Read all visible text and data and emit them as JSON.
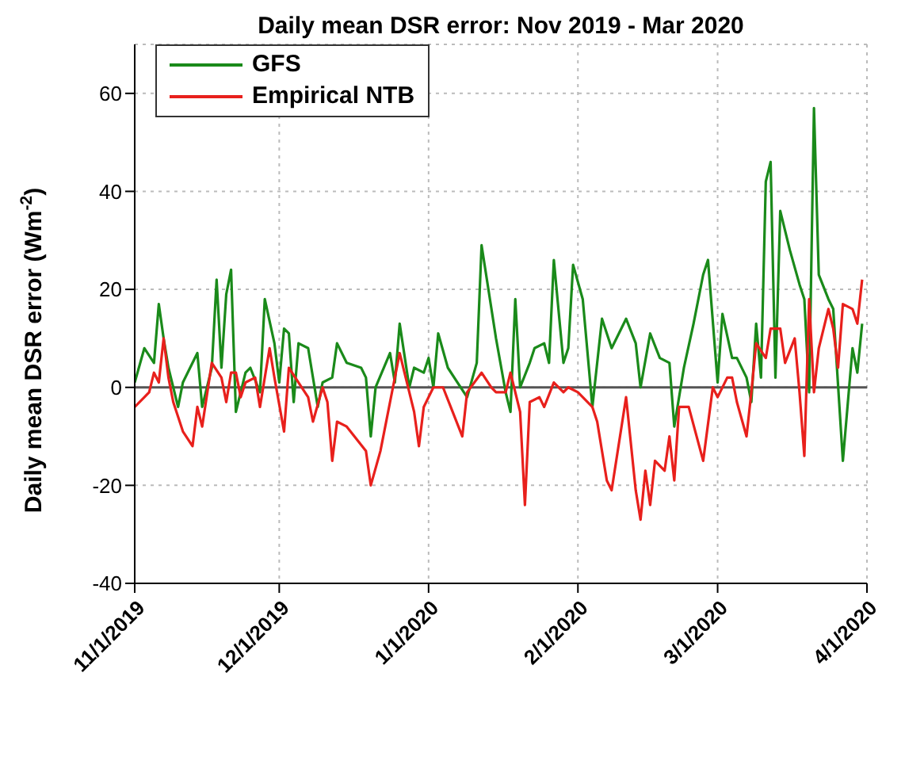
{
  "chart_data": {
    "type": "line",
    "title": "Daily mean DSR error: Nov 2019 - Mar 2020",
    "ylabel": "Daily mean DSR error (Wm$^{-2}$)",
    "xlim": [
      "2019-11-01",
      "2020-04-01"
    ],
    "xticks": [
      {
        "value": "2019-11-01",
        "label": "11/1/2019"
      },
      {
        "value": "2019-12-01",
        "label": "12/1/2019"
      },
      {
        "value": "2020-01-01",
        "label": "1/1/2020"
      },
      {
        "value": "2020-02-01",
        "label": "2/1/2020"
      },
      {
        "value": "2020-03-01",
        "label": "3/1/2020"
      },
      {
        "value": "2020-04-01",
        "label": "4/1/2020"
      }
    ],
    "ylim": [
      -40,
      70
    ],
    "yticks": [
      -40,
      -20,
      0,
      20,
      40,
      60
    ],
    "grid": true,
    "legend": "top left",
    "line_style": "solid",
    "ref_lines": [
      {
        "axis": "y",
        "value": 0,
        "color": "#555555"
      }
    ],
    "series": [
      {
        "name": "GFS",
        "color": "#1a8a1a",
        "x": [
          "2019-11-01",
          "2019-11-03",
          "2019-11-05",
          "2019-11-06",
          "2019-11-07",
          "2019-11-08",
          "2019-11-10",
          "2019-11-11",
          "2019-11-13",
          "2019-11-14",
          "2019-11-15",
          "2019-11-17",
          "2019-11-18",
          "2019-11-19",
          "2019-11-20",
          "2019-11-21",
          "2019-11-22",
          "2019-11-24",
          "2019-11-25",
          "2019-11-27",
          "2019-11-28",
          "2019-11-30",
          "2019-12-01",
          "2019-12-02",
          "2019-12-03",
          "2019-12-04",
          "2019-12-05",
          "2019-12-07",
          "2019-12-09",
          "2019-12-10",
          "2019-12-12",
          "2019-12-13",
          "2019-12-15",
          "2019-12-18",
          "2019-12-19",
          "2019-12-20",
          "2019-12-21",
          "2019-12-24",
          "2019-12-25",
          "2019-12-26",
          "2019-12-28",
          "2019-12-29",
          "2019-12-31",
          "2020-01-01",
          "2020-01-02",
          "2020-01-03",
          "2020-01-05",
          "2020-01-07",
          "2020-01-09",
          "2020-01-11",
          "2020-01-12",
          "2020-01-15",
          "2020-01-17",
          "2020-01-18",
          "2020-01-19",
          "2020-01-20",
          "2020-01-22",
          "2020-01-23",
          "2020-01-25",
          "2020-01-26",
          "2020-01-27",
          "2020-01-29",
          "2020-01-30",
          "2020-01-31",
          "2020-02-02",
          "2020-02-04",
          "2020-02-06",
          "2020-02-08",
          "2020-02-11",
          "2020-02-13",
          "2020-02-14",
          "2020-02-16",
          "2020-02-18",
          "2020-02-20",
          "2020-02-21",
          "2020-02-23",
          "2020-02-25",
          "2020-02-27",
          "2020-02-28",
          "2020-03-01",
          "2020-03-02",
          "2020-03-04",
          "2020-03-05",
          "2020-03-07",
          "2020-03-08",
          "2020-03-09",
          "2020-03-10",
          "2020-03-11",
          "2020-03-12",
          "2020-03-13",
          "2020-03-14",
          "2020-03-16",
          "2020-03-18",
          "2020-03-19",
          "2020-03-20",
          "2020-03-21",
          "2020-03-22",
          "2020-03-24",
          "2020-03-25",
          "2020-03-27",
          "2020-03-29",
          "2020-03-30",
          "2020-03-31"
        ],
        "values": [
          1,
          8,
          5,
          17,
          10,
          4,
          -4,
          1,
          5,
          7,
          -4,
          4,
          22,
          4,
          19,
          24,
          -5,
          3,
          4,
          -1,
          18,
          9,
          1,
          12,
          11,
          -3,
          9,
          8,
          -4,
          1,
          2,
          9,
          5,
          4,
          2,
          -10,
          0,
          7,
          1,
          13,
          0,
          4,
          3,
          6,
          0,
          11,
          4,
          1,
          -2,
          5,
          29,
          10,
          -1,
          -5,
          18,
          0,
          5,
          8,
          9,
          5,
          26,
          5,
          8,
          25,
          18,
          -4,
          14,
          8,
          14,
          9,
          0,
          11,
          6,
          5,
          -8,
          4,
          13,
          23,
          26,
          1,
          15,
          6,
          6,
          2,
          -3,
          13,
          2,
          42,
          46,
          2,
          36,
          28,
          21,
          18,
          -1,
          57,
          23,
          18,
          16,
          -15,
          8,
          3,
          13
        ]
      },
      {
        "name": "Empirical NTB",
        "color": "#e8201c",
        "x": [
          "2019-11-01",
          "2019-11-03",
          "2019-11-04",
          "2019-11-05",
          "2019-11-06",
          "2019-11-07",
          "2019-11-08",
          "2019-11-09",
          "2019-11-11",
          "2019-11-13",
          "2019-11-14",
          "2019-11-15",
          "2019-11-17",
          "2019-11-19",
          "2019-11-20",
          "2019-11-21",
          "2019-11-22",
          "2019-11-23",
          "2019-11-24",
          "2019-11-26",
          "2019-11-27",
          "2019-11-29",
          "2019-11-30",
          "2019-12-02",
          "2019-12-03",
          "2019-12-05",
          "2019-12-07",
          "2019-12-08",
          "2019-12-10",
          "2019-12-11",
          "2019-12-12",
          "2019-12-13",
          "2019-12-15",
          "2019-12-19",
          "2019-12-20",
          "2019-12-22",
          "2019-12-24",
          "2019-12-26",
          "2019-12-28",
          "2019-12-29",
          "2019-12-30",
          "2019-12-31",
          "2020-01-02",
          "2020-01-04",
          "2020-01-06",
          "2020-01-08",
          "2020-01-09",
          "2020-01-12",
          "2020-01-14",
          "2020-01-15",
          "2020-01-17",
          "2020-01-18",
          "2020-01-20",
          "2020-01-21",
          "2020-01-22",
          "2020-01-24",
          "2020-01-25",
          "2020-01-27",
          "2020-01-29",
          "2020-01-30",
          "2020-02-01",
          "2020-02-04",
          "2020-02-05",
          "2020-02-07",
          "2020-02-08",
          "2020-02-11",
          "2020-02-13",
          "2020-02-14",
          "2020-02-15",
          "2020-02-16",
          "2020-02-17",
          "2020-02-19",
          "2020-02-20",
          "2020-02-21",
          "2020-02-22",
          "2020-02-24",
          "2020-02-27",
          "2020-02-29",
          "2020-03-01",
          "2020-03-03",
          "2020-03-04",
          "2020-03-05",
          "2020-03-07",
          "2020-03-08",
          "2020-03-09",
          "2020-03-11",
          "2020-03-12",
          "2020-03-14",
          "2020-03-15",
          "2020-03-17",
          "2020-03-18",
          "2020-03-19",
          "2020-03-20",
          "2020-03-21",
          "2020-03-22",
          "2020-03-24",
          "2020-03-25",
          "2020-03-26",
          "2020-03-27",
          "2020-03-29",
          "2020-03-30",
          "2020-03-31"
        ],
        "values": [
          -4,
          -2,
          -1,
          3,
          1,
          10,
          2,
          -3,
          -9,
          -12,
          -4,
          -8,
          5,
          2,
          -3,
          3,
          3,
          -2,
          1,
          2,
          -4,
          8,
          2,
          -9,
          4,
          1,
          -2,
          -7,
          0,
          -3,
          -15,
          -7,
          -8,
          -13,
          -20,
          -13,
          -3,
          7,
          -1,
          -5,
          -12,
          -4,
          0,
          0,
          -5,
          -10,
          -1,
          3,
          0,
          -1,
          -1,
          3,
          -5,
          -24,
          -3,
          -2,
          -4,
          1,
          -1,
          0,
          -1,
          -4,
          -7,
          -19,
          -21,
          -2,
          -21,
          -27,
          -17,
          -24,
          -15,
          -17,
          -10,
          -19,
          -4,
          -4,
          -15,
          0,
          -2,
          2,
          2,
          -3,
          -10,
          -1,
          9,
          6,
          12,
          12,
          5,
          10,
          -1,
          -14,
          18,
          -1,
          8,
          16,
          12,
          4,
          17,
          16,
          13,
          22
        ]
      }
    ]
  }
}
